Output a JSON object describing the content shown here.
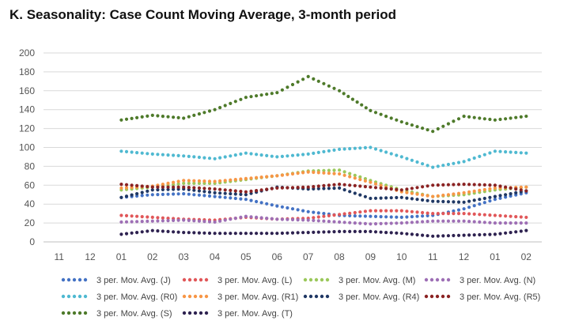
{
  "chart_data": {
    "type": "line",
    "title": "K. Seasonality: Case Count Moving Average, 3-month period",
    "categories": [
      "11",
      "12",
      "01",
      "02",
      "03",
      "04",
      "05",
      "06",
      "07",
      "08",
      "09",
      "10",
      "11",
      "12",
      "01",
      "02"
    ],
    "ylim": [
      0,
      200
    ],
    "yticks": [
      0,
      20,
      40,
      60,
      80,
      100,
      120,
      140,
      160,
      180,
      200
    ],
    "grid": "horizontal",
    "legend_position": "bottom",
    "series": [
      {
        "name": "3 per. Mov. Avg. (J)",
        "color": "#4472c4",
        "values": [
          null,
          null,
          47,
          50,
          51,
          48,
          45,
          38,
          32,
          28,
          27,
          26,
          28,
          35,
          45,
          52
        ]
      },
      {
        "name": "3 per. Mov. Avg. (L)",
        "color": "#e15759",
        "values": [
          null,
          null,
          28,
          26,
          24,
          23,
          26,
          24,
          25,
          29,
          33,
          33,
          30,
          30,
          28,
          26
        ]
      },
      {
        "name": "3 per. Mov. Avg. (M)",
        "color": "#9bc85b",
        "values": [
          null,
          null,
          55,
          58,
          62,
          62,
          66,
          70,
          75,
          76,
          65,
          55,
          48,
          50,
          55,
          58
        ]
      },
      {
        "name": "3 per. Mov. Avg. (N)",
        "color": "#9e6fb5",
        "values": [
          null,
          null,
          21,
          22,
          23,
          21,
          27,
          24,
          23,
          21,
          19,
          20,
          22,
          22,
          20,
          20
        ]
      },
      {
        "name": "3 per. Mov. Avg. (R0)",
        "color": "#4fb9d1",
        "values": [
          null,
          null,
          96,
          93,
          91,
          88,
          94,
          90,
          93,
          98,
          100,
          90,
          79,
          85,
          96,
          94
        ]
      },
      {
        "name": "3 per. Mov. Avg. (R1)",
        "color": "#f79646",
        "values": [
          null,
          null,
          57,
          59,
          65,
          64,
          67,
          70,
          74,
          72,
          63,
          53,
          48,
          52,
          57,
          58
        ]
      },
      {
        "name": "3 per. Mov. Avg. (R4)",
        "color": "#203864",
        "values": [
          null,
          null,
          47,
          55,
          56,
          52,
          50,
          58,
          56,
          57,
          46,
          47,
          43,
          42,
          48,
          54
        ]
      },
      {
        "name": "3 per. Mov. Avg. (R5)",
        "color": "#8b2323",
        "values": [
          null,
          null,
          61,
          58,
          58,
          56,
          53,
          57,
          58,
          61,
          58,
          55,
          60,
          61,
          60,
          54
        ]
      },
      {
        "name": "3 per. Mov. Avg. (S)",
        "color": "#4e7a2a",
        "values": [
          null,
          null,
          129,
          134,
          131,
          140,
          153,
          158,
          175,
          160,
          139,
          127,
          117,
          133,
          129,
          133
        ]
      },
      {
        "name": "3 per. Mov. Avg. (T)",
        "color": "#2e2250",
        "values": [
          null,
          null,
          8,
          12,
          10,
          9,
          9,
          9,
          10,
          11,
          11,
          9,
          6,
          7,
          8,
          12
        ]
      }
    ]
  }
}
